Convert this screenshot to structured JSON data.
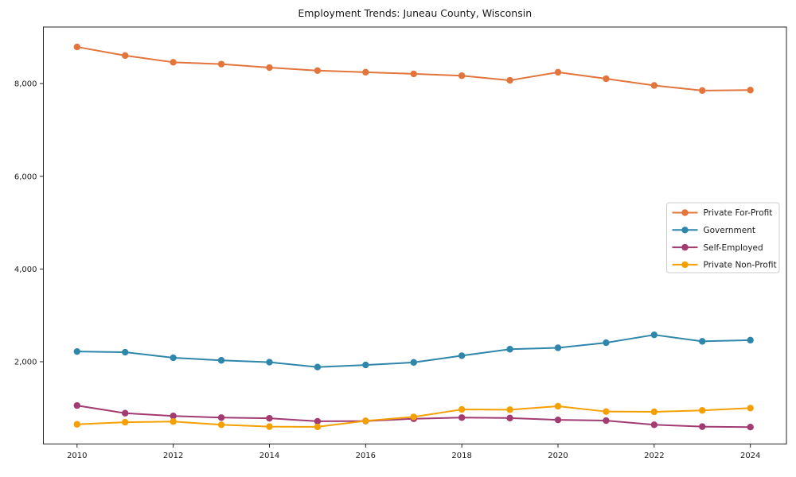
{
  "title": "Employment Trends: Juneau County, Wisconsin",
  "chart_data": {
    "type": "line",
    "title": "Employment Trends: Juneau County, Wisconsin",
    "xlabel": "",
    "ylabel": "",
    "x": [
      2010,
      2011,
      2012,
      2013,
      2014,
      2015,
      2016,
      2017,
      2018,
      2019,
      2020,
      2021,
      2022,
      2023,
      2024
    ],
    "series": [
      {
        "name": "Private For-Profit",
        "color": "#E2743C",
        "values": [
          8790,
          8605,
          8460,
          8420,
          8345,
          8280,
          8245,
          8210,
          8170,
          8070,
          8245,
          8105,
          7960,
          7850,
          7860
        ]
      },
      {
        "name": "Government",
        "color": "#2E86AB",
        "values": [
          2220,
          2205,
          2085,
          2030,
          1990,
          1885,
          1930,
          1985,
          2130,
          2270,
          2300,
          2410,
          2580,
          2440,
          2465
        ]
      },
      {
        "name": "Self-Employed",
        "color": "#A23B72",
        "values": [
          1055,
          890,
          830,
          795,
          780,
          715,
          720,
          770,
          795,
          785,
          745,
          730,
          640,
          600,
          590
        ]
      },
      {
        "name": "Private Non-Profit",
        "color": "#F5A002",
        "values": [
          650,
          695,
          710,
          640,
          600,
          595,
          725,
          810,
          970,
          965,
          1040,
          925,
          920,
          950,
          1000
        ]
      }
    ],
    "xlim": [
      2009.3,
      2024.75
    ],
    "ylim": [
      225,
      9220
    ],
    "x_ticks": [
      2010,
      2012,
      2014,
      2016,
      2018,
      2020,
      2022,
      2024
    ],
    "x_tick_labels": [
      "2010",
      "2012",
      "2014",
      "2016",
      "2018",
      "2020",
      "2022",
      "2024"
    ],
    "y_ticks": [
      2000,
      4000,
      6000,
      8000
    ],
    "y_tick_labels": [
      "2,000",
      "4,000",
      "6,000",
      "8,000"
    ],
    "grid": false,
    "legend_position": "center right",
    "legend_labels": [
      "Private For-Profit",
      "Government",
      "Self-Employed",
      "Private Non-Profit"
    ]
  },
  "style": {
    "spine_color": "#262626",
    "tick_color": "#262626",
    "legend_border_color": "#cccccc",
    "background": "#ffffff"
  }
}
